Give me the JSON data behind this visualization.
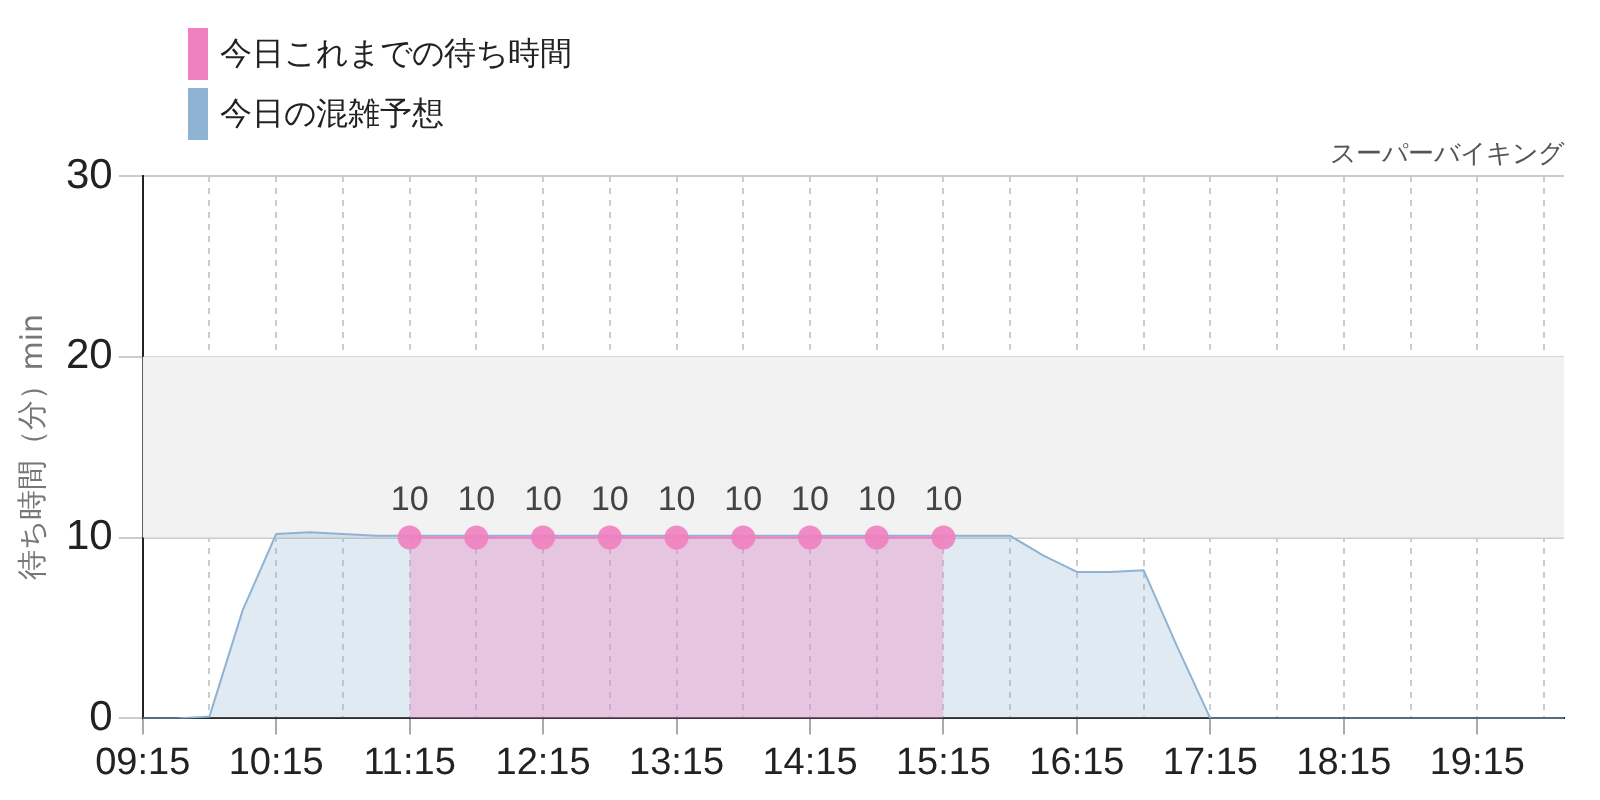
{
  "chart_data": {
    "type": "area",
    "ylabel": "待ち時間（分）min",
    "annotations": [
      "スーパーバイキング"
    ],
    "legend": "top left",
    "grid": true,
    "xlim": [
      9.25,
      19.9
    ],
    "ylim": [
      0,
      30
    ],
    "yticks": [
      0,
      10,
      20,
      30
    ],
    "xticks": [
      {
        "value": 9.25,
        "label": "09:15"
      },
      {
        "value": 9.75,
        "label": null
      },
      {
        "value": 10.25,
        "label": "10:15"
      },
      {
        "value": 10.75,
        "label": null
      },
      {
        "value": 11.25,
        "label": "11:15"
      },
      {
        "value": 11.75,
        "label": null
      },
      {
        "value": 12.25,
        "label": "12:15"
      },
      {
        "value": 12.75,
        "label": null
      },
      {
        "value": 13.25,
        "label": "13:15"
      },
      {
        "value": 13.75,
        "label": null
      },
      {
        "value": 14.25,
        "label": "14:15"
      },
      {
        "value": 14.75,
        "label": null
      },
      {
        "value": 15.25,
        "label": "15:15"
      },
      {
        "value": 15.75,
        "label": null
      },
      {
        "value": 16.25,
        "label": "16:15"
      },
      {
        "value": 16.75,
        "label": null
      },
      {
        "value": 17.25,
        "label": "17:15"
      },
      {
        "value": 17.75,
        "label": null
      },
      {
        "value": 18.25,
        "label": "18:15"
      },
      {
        "value": 18.75,
        "label": null
      },
      {
        "value": 19.25,
        "label": "19:15"
      },
      {
        "value": 19.75,
        "label": null
      }
    ],
    "bands": [
      {
        "axis": "y",
        "from": 10,
        "to": 20,
        "color": "#f2f2f2"
      }
    ],
    "series": [
      {
        "name": "今日これまでの待ち時間",
        "color": "#f080c0",
        "marker": "circle",
        "x": [
          11.25,
          11.75,
          12.25,
          12.75,
          13.25,
          13.75,
          14.25,
          14.75,
          15.25
        ],
        "values": [
          10,
          10,
          10,
          10,
          10,
          10,
          10,
          10,
          10
        ],
        "value_labels": [
          "10",
          "10",
          "10",
          "10",
          "10",
          "10",
          "10",
          "10",
          "10"
        ]
      },
      {
        "name": "今日の混雑予想",
        "color": "#8fb3d3",
        "marker": "none",
        "x": [
          9.25,
          9.5,
          9.75,
          10,
          10.25,
          10.5,
          11,
          12,
          13,
          14,
          15,
          15.5,
          15.75,
          16,
          16.25,
          16.5,
          16.75,
          17,
          17.25,
          17.5,
          18,
          19,
          19.9
        ],
        "values": [
          0,
          0,
          0.1,
          6,
          10.2,
          10.3,
          10.1,
          10.1,
          10.1,
          10.1,
          10.1,
          10.1,
          10.1,
          9,
          8.1,
          8.1,
          8.2,
          4,
          0,
          0,
          0,
          0,
          0
        ]
      }
    ]
  }
}
